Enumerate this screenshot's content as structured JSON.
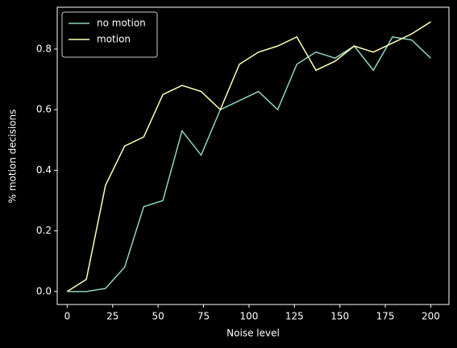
{
  "chart_data": {
    "type": "line",
    "xlabel": "Noise level",
    "ylabel": "% motion decisions",
    "x": [
      0,
      10.53,
      21.05,
      31.58,
      42.11,
      52.63,
      63.16,
      73.68,
      84.21,
      94.74,
      105.26,
      115.79,
      126.32,
      136.84,
      147.37,
      157.89,
      168.42,
      178.95,
      189.47,
      200
    ],
    "series": [
      {
        "name": "no motion",
        "color": "#8dd3c7",
        "values": [
          0,
          0,
          0.01,
          0.08,
          0.28,
          0.3,
          0.53,
          0.45,
          0.6,
          0.63,
          0.66,
          0.6,
          0.75,
          0.79,
          0.77,
          0.81,
          0.73,
          0.84,
          0.83,
          0.77
        ]
      },
      {
        "name": "motion",
        "color": "#feffb3",
        "values": [
          0,
          0.04,
          0.35,
          0.48,
          0.51,
          0.65,
          0.68,
          0.66,
          0.6,
          0.75,
          0.79,
          0.81,
          0.84,
          0.73,
          0.76,
          0.81,
          0.79,
          0.82,
          0.85,
          0.89
        ]
      }
    ],
    "xlim": [
      -5.5,
      210
    ],
    "ylim": [
      -0.043,
      0.938
    ],
    "xticks": [
      0,
      25,
      50,
      75,
      100,
      125,
      150,
      175,
      200
    ],
    "yticks": [
      {
        "value": 0,
        "label": "0.0"
      },
      0.2,
      0.4,
      0.6,
      0.8
    ],
    "legend": "upper left"
  }
}
